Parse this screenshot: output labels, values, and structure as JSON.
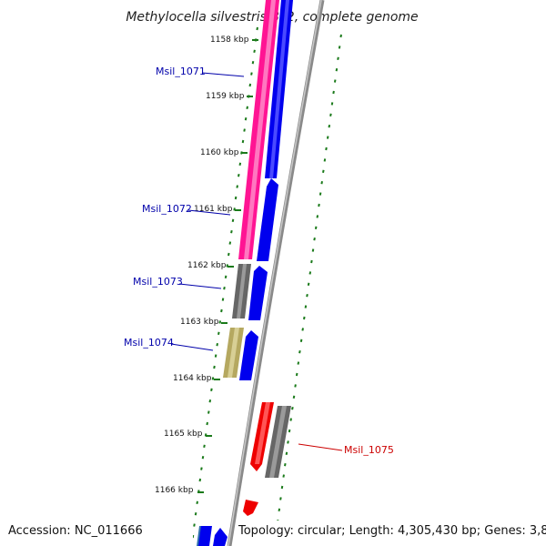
{
  "title": "Methylocella silvestris BL2, complete genome",
  "accession": "Accession: NC_011666",
  "summary": "Topology: circular; Length: 4,305,430 bp; Genes: 3,872",
  "colors": {
    "backbone": "#8a8a8a",
    "tick_green": "#1a7a1a",
    "pink": "#ff1493",
    "blue": "#0000ee",
    "gray": "#666666",
    "olive": "#b5a860",
    "red": "#ee0000",
    "steel": "#2e6fae",
    "label_blue": "#0000aa",
    "label_red": "#cc0000"
  },
  "ticks": [
    {
      "label": "1158 kbp"
    },
    {
      "label": "1159 kbp"
    },
    {
      "label": "1160 kbp"
    },
    {
      "label": "1161 kbp"
    },
    {
      "label": "1162 kbp"
    },
    {
      "label": "1163 kbp"
    },
    {
      "label": "1164 kbp"
    },
    {
      "label": "1165 kbp"
    },
    {
      "label": "1166 kbp"
    }
  ],
  "genes": [
    {
      "label": "Msil_1071",
      "color": "label_blue"
    },
    {
      "label": "Msil_1072",
      "color": "label_blue"
    },
    {
      "label": "Msil_1073",
      "color": "label_blue"
    },
    {
      "label": "Msil_1074",
      "color": "label_blue"
    },
    {
      "label": "Msil_1075",
      "color": "label_red"
    }
  ]
}
